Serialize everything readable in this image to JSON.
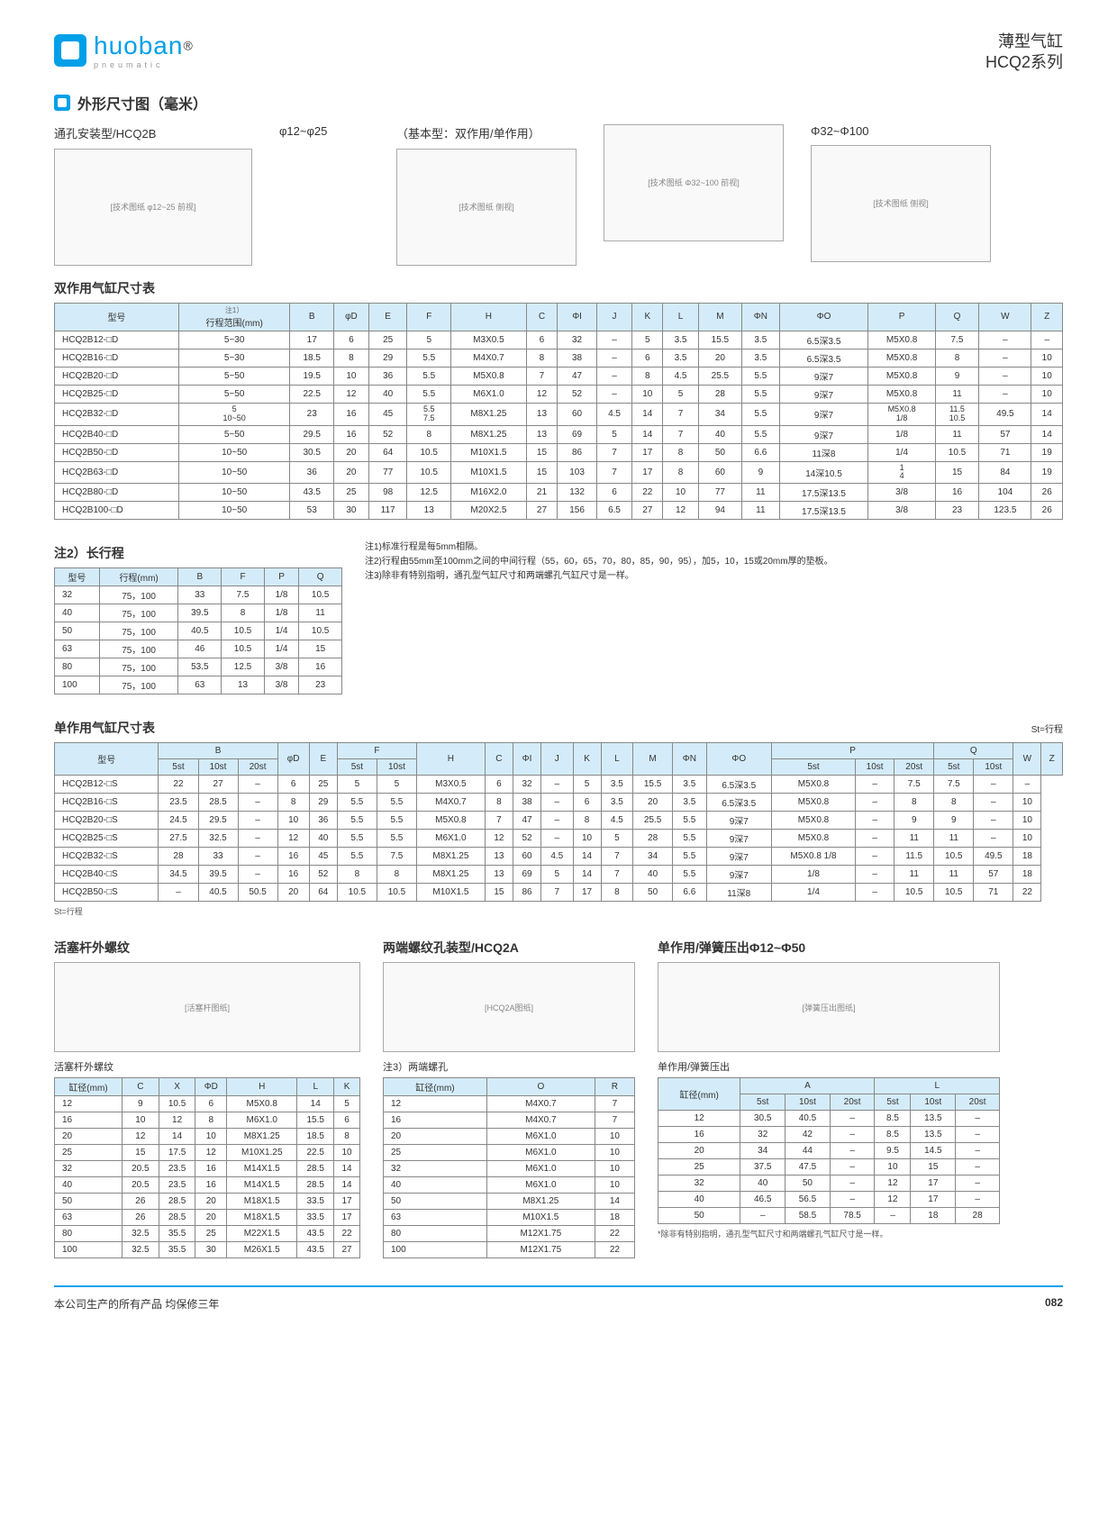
{
  "header": {
    "product_name": "薄型气缸",
    "series": "HCQ2系列",
    "brand": "huoban",
    "brand_sub": "pneumatic"
  },
  "main_title": "外形尺寸图（毫米）",
  "install_label": "通孔安装型/HCQ2B",
  "range1": "φ12~φ25",
  "range2": "（基本型：双作用/单作用）",
  "range3": "Φ32~Φ100",
  "fig_labels": [
    "技术图纸",
    "技术图纸",
    "技术图纸",
    "技术图纸"
  ],
  "table1_title": "双作用气缸尺寸表",
  "table1_note_ref": "注1）",
  "table1": {
    "cols": [
      "型号",
      "行程范围(mm)",
      "B",
      "φD",
      "E",
      "F",
      "H",
      "C",
      "ΦI",
      "J",
      "K",
      "L",
      "M",
      "ΦN",
      "ΦO",
      "P",
      "Q",
      "W",
      "Z"
    ],
    "rows": [
      [
        "HCQ2B12-□D",
        "5~30",
        "17",
        "6",
        "25",
        "5",
        "M3X0.5",
        "6",
        "32",
        "–",
        "5",
        "3.5",
        "15.5",
        "3.5",
        "6.5深3.5",
        "M5X0.8",
        "7.5",
        "–",
        "–"
      ],
      [
        "HCQ2B16-□D",
        "5~30",
        "18.5",
        "8",
        "29",
        "5.5",
        "M4X0.7",
        "8",
        "38",
        "–",
        "6",
        "3.5",
        "20",
        "3.5",
        "6.5深3.5",
        "M5X0.8",
        "8",
        "–",
        "10"
      ],
      [
        "HCQ2B20-□D",
        "5~50",
        "19.5",
        "10",
        "36",
        "5.5",
        "M5X0.8",
        "7",
        "47",
        "–",
        "8",
        "4.5",
        "25.5",
        "5.5",
        "9深7",
        "M5X0.8",
        "9",
        "–",
        "10"
      ],
      [
        "HCQ2B25-□D",
        "5~50",
        "22.5",
        "12",
        "40",
        "5.5",
        "M6X1.0",
        "12",
        "52",
        "–",
        "10",
        "5",
        "28",
        "5.5",
        "9深7",
        "M5X0.8",
        "11",
        "–",
        "10"
      ],
      [
        "HCQ2B32-□D",
        "5／10~50",
        "23",
        "16",
        "45",
        "5.5／7.5",
        "M8X1.25",
        "13",
        "60",
        "4.5",
        "14",
        "7",
        "34",
        "5.5",
        "9深7",
        "M5X0.8／1/8",
        "11.5／10.5",
        "49.5",
        "14"
      ],
      [
        "HCQ2B40-□D",
        "5~50",
        "29.5",
        "16",
        "52",
        "8",
        "M8X1.25",
        "13",
        "69",
        "5",
        "14",
        "7",
        "40",
        "5.5",
        "9深7",
        "1/8",
        "11",
        "57",
        "14"
      ],
      [
        "HCQ2B50-□D",
        "10~50",
        "30.5",
        "20",
        "64",
        "10.5",
        "M10X1.5",
        "15",
        "86",
        "7",
        "17",
        "8",
        "50",
        "6.6",
        "11深8",
        "1/4",
        "10.5",
        "71",
        "19"
      ],
      [
        "HCQ2B63-□D",
        "10~50",
        "36",
        "20",
        "77",
        "10.5",
        "M10X1.5",
        "15",
        "103",
        "7",
        "17",
        "8",
        "60",
        "9",
        "14深10.5",
        "1／4",
        "15",
        "84",
        "19"
      ],
      [
        "HCQ2B80-□D",
        "10~50",
        "43.5",
        "25",
        "98",
        "12.5",
        "M16X2.0",
        "21",
        "132",
        "6",
        "22",
        "10",
        "77",
        "11",
        "17.5深13.5",
        "3/8",
        "16",
        "104",
        "26"
      ],
      [
        "HCQ2B100-□D",
        "10~50",
        "53",
        "30",
        "117",
        "13",
        "M20X2.5",
        "27",
        "156",
        "6.5",
        "27",
        "12",
        "94",
        "11",
        "17.5深13.5",
        "3/8",
        "23",
        "123.5",
        "26"
      ]
    ]
  },
  "table2_title": "注2）长行程",
  "table2": {
    "cols": [
      "型号",
      "行程(mm)",
      "B",
      "F",
      "P",
      "Q"
    ],
    "rows": [
      [
        "32",
        "75，100",
        "33",
        "7.5",
        "1/8",
        "10.5"
      ],
      [
        "40",
        "75，100",
        "39.5",
        "8",
        "1/8",
        "11"
      ],
      [
        "50",
        "75，100",
        "40.5",
        "10.5",
        "1/4",
        "10.5"
      ],
      [
        "63",
        "75，100",
        "46",
        "10.5",
        "1/4",
        "15"
      ],
      [
        "80",
        "75，100",
        "53.5",
        "12.5",
        "3/8",
        "16"
      ],
      [
        "100",
        "75，100",
        "63",
        "13",
        "3/8",
        "23"
      ]
    ]
  },
  "notes": [
    "注1)标准行程是每5mm相隔。",
    "注2)行程由55mm至100mm之间的中间行程（55，60，65，70，80，85，90，95），加5，10，15或20mm厚的垫板。",
    "注3)除非有特别指明，通孔型气缸尺寸和两端螺孔气缸尺寸是一样。"
  ],
  "table3_title": "单作用气缸尺寸表",
  "table3_suffix": "St=行程",
  "table3": {
    "group_cols": [
      "型号",
      "B",
      "",
      "F",
      "",
      "",
      "",
      "",
      "",
      "",
      "",
      "",
      "",
      "",
      "P",
      "Q",
      "",
      ""
    ],
    "cols": [
      "",
      "5st",
      "10st",
      "20st",
      "φD",
      "E",
      "5st",
      "10st",
      "H",
      "C",
      "ΦI",
      "J",
      "K",
      "L",
      "M",
      "ΦN",
      "ΦO",
      "5st",
      "10st",
      "20st",
      "5st",
      "10st",
      "W",
      "Z"
    ],
    "rows": [
      [
        "HCQ2B12-□S",
        "22",
        "27",
        "–",
        "6",
        "25",
        "5",
        "5",
        "M3X0.5",
        "6",
        "32",
        "–",
        "5",
        "3.5",
        "15.5",
        "3.5",
        "6.5深3.5",
        "M5X0.8",
        "–",
        "7.5",
        "7.5",
        "–",
        "–"
      ],
      [
        "HCQ2B16-□S",
        "23.5",
        "28.5",
        "–",
        "8",
        "29",
        "5.5",
        "5.5",
        "M4X0.7",
        "8",
        "38",
        "–",
        "6",
        "3.5",
        "20",
        "3.5",
        "6.5深3.5",
        "M5X0.8",
        "–",
        "8",
        "8",
        "–",
        "10"
      ],
      [
        "HCQ2B20-□S",
        "24.5",
        "29.5",
        "–",
        "10",
        "36",
        "5.5",
        "5.5",
        "M5X0.8",
        "7",
        "47",
        "–",
        "8",
        "4.5",
        "25.5",
        "5.5",
        "9深7",
        "M5X0.8",
        "–",
        "9",
        "9",
        "–",
        "10"
      ],
      [
        "HCQ2B25-□S",
        "27.5",
        "32.5",
        "–",
        "12",
        "40",
        "5.5",
        "5.5",
        "M6X1.0",
        "12",
        "52",
        "–",
        "10",
        "5",
        "28",
        "5.5",
        "9深7",
        "M5X0.8",
        "–",
        "11",
        "11",
        "–",
        "10"
      ],
      [
        "HCQ2B32-□S",
        "28",
        "33",
        "–",
        "16",
        "45",
        "5.5",
        "7.5",
        "M8X1.25",
        "13",
        "60",
        "4.5",
        "14",
        "7",
        "34",
        "5.5",
        "9深7",
        "M5X0.8｜1/8",
        "–",
        "11.5",
        "10.5",
        "49.5",
        "18"
      ],
      [
        "HCQ2B40-□S",
        "34.5",
        "39.5",
        "–",
        "16",
        "52",
        "8",
        "8",
        "M8X1.25",
        "13",
        "69",
        "5",
        "14",
        "7",
        "40",
        "5.5",
        "9深7",
        "1/8",
        "–",
        "11",
        "11",
        "57",
        "18"
      ],
      [
        "HCQ2B50-□S",
        "–",
        "40.5",
        "50.5",
        "20",
        "64",
        "10.5",
        "10.5",
        "M10X1.5",
        "15",
        "86",
        "7",
        "17",
        "8",
        "50",
        "6.6",
        "11深8",
        "1/4",
        "–",
        "10.5",
        "10.5",
        "71",
        "22"
      ]
    ]
  },
  "st_note": "St=行程",
  "rod_title": "活塞杆外螺纹",
  "rod_table_title": "活塞杆外螺纹",
  "rod_table": {
    "cols": [
      "缸径(mm)",
      "C",
      "X",
      "ΦD",
      "H",
      "L",
      "K"
    ],
    "rows": [
      [
        "12",
        "9",
        "10.5",
        "6",
        "M5X0.8",
        "14",
        "5"
      ],
      [
        "16",
        "10",
        "12",
        "8",
        "M6X1.0",
        "15.5",
        "6"
      ],
      [
        "20",
        "12",
        "14",
        "10",
        "M8X1.25",
        "18.5",
        "8"
      ],
      [
        "25",
        "15",
        "17.5",
        "12",
        "M10X1.25",
        "22.5",
        "10"
      ],
      [
        "32",
        "20.5",
        "23.5",
        "16",
        "M14X1.5",
        "28.5",
        "14"
      ],
      [
        "40",
        "20.5",
        "23.5",
        "16",
        "M14X1.5",
        "28.5",
        "14"
      ],
      [
        "50",
        "26",
        "28.5",
        "20",
        "M18X1.5",
        "33.5",
        "17"
      ],
      [
        "63",
        "26",
        "28.5",
        "20",
        "M18X1.5",
        "33.5",
        "17"
      ],
      [
        "80",
        "32.5",
        "35.5",
        "25",
        "M22X1.5",
        "43.5",
        "22"
      ],
      [
        "100",
        "32.5",
        "35.5",
        "30",
        "M26X1.5",
        "43.5",
        "27"
      ]
    ]
  },
  "hcq2a_title": "两端螺纹孔装型/HCQ2A",
  "hcq2a_table_title": "注3）两端螺孔",
  "hcq2a_table": {
    "cols": [
      "缸径(mm)",
      "O",
      "R"
    ],
    "rows": [
      [
        "12",
        "M4X0.7",
        "7"
      ],
      [
        "16",
        "M4X0.7",
        "7"
      ],
      [
        "20",
        "M6X1.0",
        "10"
      ],
      [
        "25",
        "M6X1.0",
        "10"
      ],
      [
        "32",
        "M6X1.0",
        "10"
      ],
      [
        "40",
        "M6X1.0",
        "10"
      ],
      [
        "50",
        "M8X1.25",
        "14"
      ],
      [
        "63",
        "M10X1.5",
        "18"
      ],
      [
        "80",
        "M12X1.75",
        "22"
      ],
      [
        "100",
        "M12X1.75",
        "22"
      ]
    ]
  },
  "spring_title": "单作用/弹簧压出Φ12~Φ50",
  "spring_table_title": "单作用/弹簧压出",
  "spring_table": {
    "cols": [
      "缸径(mm)",
      "5st",
      "10st",
      "20st",
      "5st",
      "10st",
      "20st"
    ],
    "group": [
      "",
      "A",
      "L"
    ],
    "rows": [
      [
        "12",
        "30.5",
        "40.5",
        "–",
        "8.5",
        "13.5",
        "–"
      ],
      [
        "16",
        "32",
        "42",
        "–",
        "8.5",
        "13.5",
        "–"
      ],
      [
        "20",
        "34",
        "44",
        "–",
        "9.5",
        "14.5",
        "–"
      ],
      [
        "25",
        "37.5",
        "47.5",
        "–",
        "10",
        "15",
        "–"
      ],
      [
        "32",
        "40",
        "50",
        "–",
        "12",
        "17",
        "–"
      ],
      [
        "40",
        "46.5",
        "56.5",
        "–",
        "12",
        "17",
        "–"
      ],
      [
        "50",
        "–",
        "58.5",
        "78.5",
        "–",
        "18",
        "28"
      ]
    ]
  },
  "spring_note": "*除非有特别指明，通孔型气缸尺寸和两端螺孔气缸尺寸是一样。",
  "footer": {
    "warranty": "本公司生产的所有产品 均保修三年",
    "page": "082"
  }
}
